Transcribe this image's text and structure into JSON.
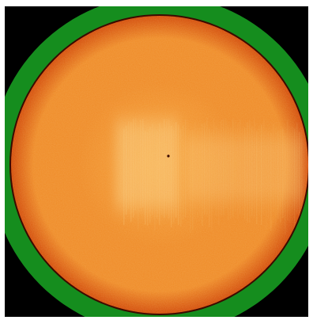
{
  "image": {
    "kind": "false-color solar disk",
    "colors": {
      "background": "#000000",
      "ring": "#158d1e",
      "disk_center": "#f6a23b",
      "disk_mid": "#ef8a26",
      "disk_edge": "#d34a07",
      "bright_patch": "#f9c676",
      "limb_line": "#3b0a00"
    },
    "features": [
      "green-ring-mask",
      "limb-darkened-orange-disk",
      "bright-vertical-band-left",
      "faint-vertical-band-right",
      "small-dark-dot"
    ]
  }
}
